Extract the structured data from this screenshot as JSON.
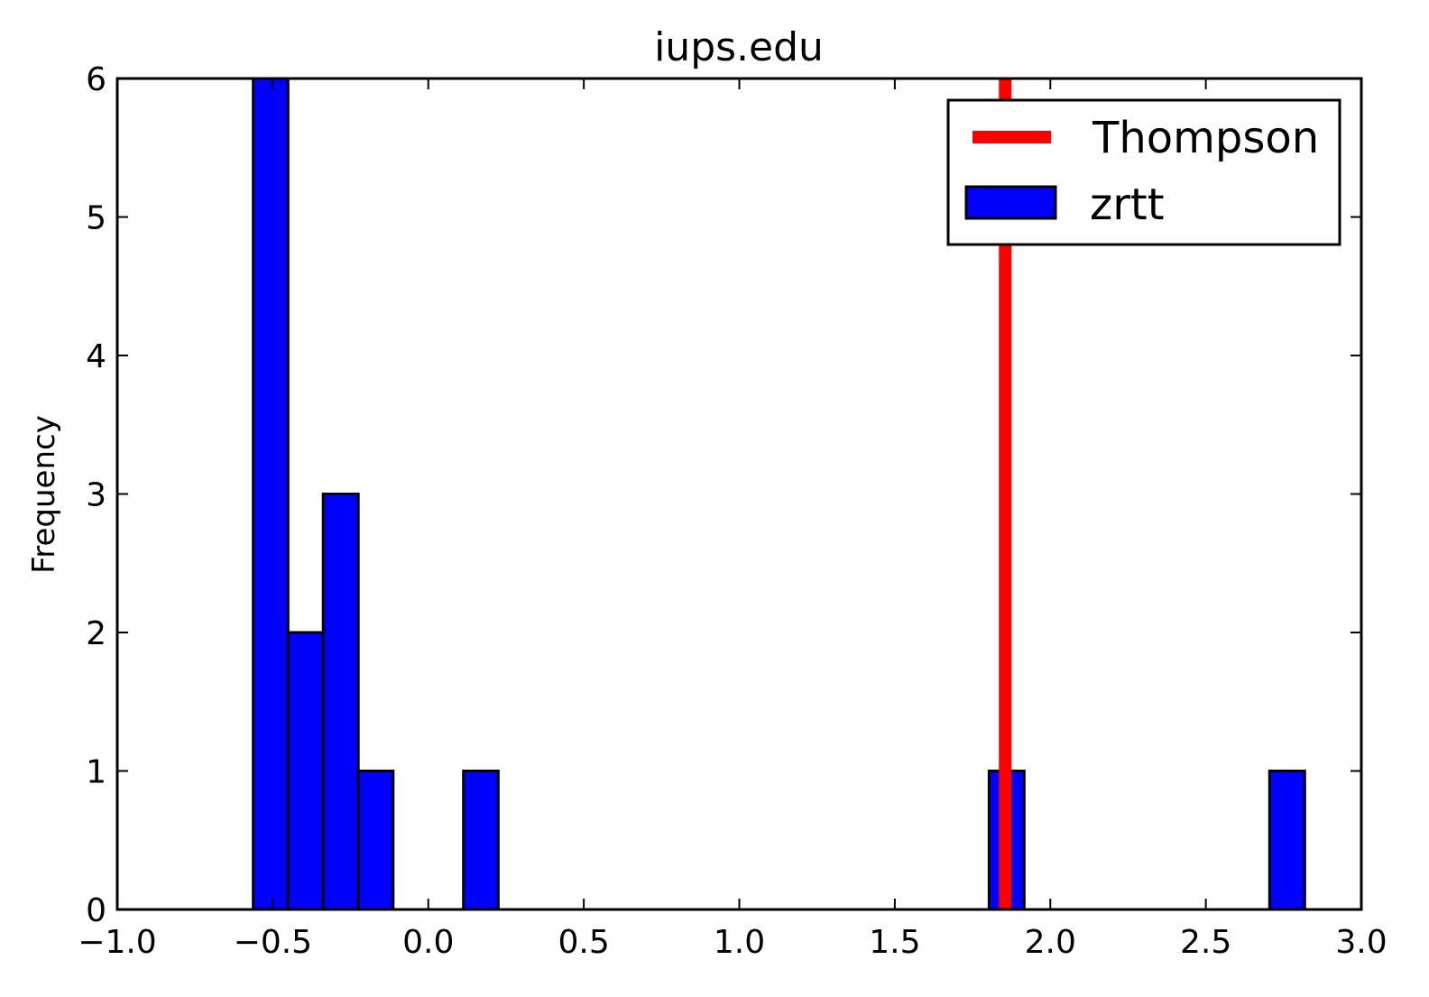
{
  "chart_data": {
    "type": "bar",
    "title": "iups.edu",
    "xlabel": "",
    "ylabel": "Frequency",
    "xlim": [
      -1.0,
      3.0
    ],
    "ylim": [
      0,
      6
    ],
    "x_ticks": [
      -1.0,
      -0.5,
      0.0,
      0.5,
      1.0,
      1.5,
      2.0,
      2.5,
      3.0
    ],
    "x_tick_labels": [
      "−1.0",
      "−0.5",
      "0.0",
      "0.5",
      "1.0",
      "1.5",
      "2.0",
      "2.5",
      "3.0"
    ],
    "y_ticks": [
      0,
      1,
      2,
      3,
      4,
      5,
      6
    ],
    "y_tick_labels": [
      "0",
      "1",
      "2",
      "3",
      "4",
      "5",
      "6"
    ],
    "grid": false,
    "legend": "top-right",
    "series": [
      {
        "name": "zrtt",
        "kind": "histogram",
        "color": "#0000ff",
        "bins": [
          {
            "x0": -0.563,
            "x1": -0.451,
            "count": 6
          },
          {
            "x0": -0.451,
            "x1": -0.338,
            "count": 2
          },
          {
            "x0": -0.338,
            "x1": -0.225,
            "count": 3
          },
          {
            "x0": -0.225,
            "x1": -0.113,
            "count": 1
          },
          {
            "x0": 0.113,
            "x1": 0.225,
            "count": 1
          },
          {
            "x0": 1.803,
            "x1": 1.916,
            "count": 1
          },
          {
            "x0": 2.705,
            "x1": 2.818,
            "count": 1
          }
        ]
      },
      {
        "name": "Thompson",
        "kind": "vline",
        "color": "#ff0000",
        "x": 1.855
      }
    ]
  }
}
